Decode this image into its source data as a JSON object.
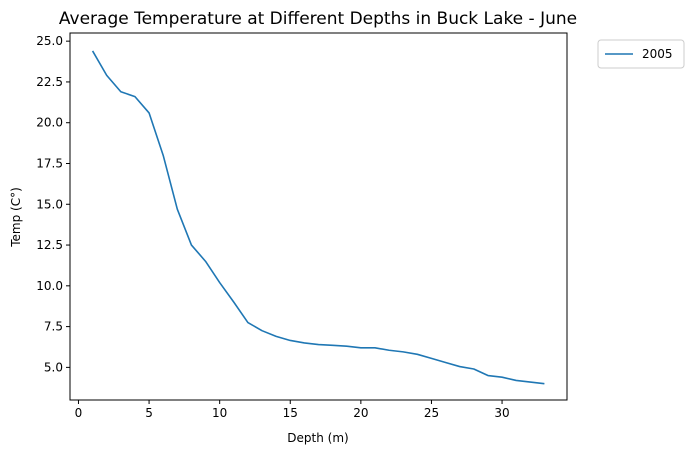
{
  "chart_data": {
    "type": "line",
    "title": "Average Temperature at Different Depths in Buck Lake - June",
    "xlabel": "Depth (m)",
    "ylabel": "Temp (C°)",
    "xlim": [
      -0.6,
      34.6
    ],
    "ylim": [
      3.0,
      25.5
    ],
    "xticks": [
      0,
      5,
      10,
      15,
      20,
      25,
      30
    ],
    "yticks": [
      5.0,
      7.5,
      10.0,
      12.5,
      15.0,
      17.5,
      20.0,
      22.5,
      25.0
    ],
    "xtick_labels": [
      "0",
      "5",
      "10",
      "15",
      "20",
      "25",
      "30"
    ],
    "ytick_labels": [
      "5.0",
      "7.5",
      "10.0",
      "12.5",
      "15.0",
      "17.5",
      "20.0",
      "22.5",
      "25.0"
    ],
    "legend_position": "outside-top-right",
    "grid": false,
    "series": [
      {
        "name": "2005",
        "color": "#1f77b4",
        "x": [
          1,
          2,
          3,
          4,
          5,
          6,
          7,
          8,
          9,
          10,
          11,
          12,
          13,
          14,
          15,
          16,
          17,
          18,
          19,
          20,
          21,
          22,
          23,
          24,
          25,
          26,
          27,
          28,
          29,
          30,
          31,
          32,
          33
        ],
        "y": [
          24.4,
          22.9,
          21.9,
          21.6,
          20.6,
          18.0,
          14.7,
          12.5,
          11.5,
          10.2,
          9.0,
          7.75,
          7.25,
          6.9,
          6.65,
          6.5,
          6.4,
          6.35,
          6.3,
          6.2,
          6.2,
          6.05,
          5.95,
          5.8,
          5.55,
          5.3,
          5.05,
          4.9,
          4.5,
          4.4,
          4.2,
          4.1,
          4.0
        ]
      }
    ]
  }
}
